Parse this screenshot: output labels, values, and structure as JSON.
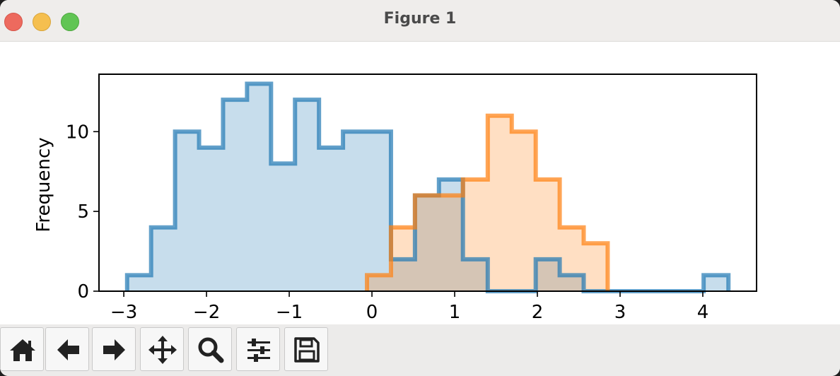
{
  "window": {
    "title": "Figure 1"
  },
  "toolbar": {
    "buttons": [
      {
        "name": "home-button",
        "icon": "home-icon"
      },
      {
        "name": "back-button",
        "icon": "arrow-left-icon"
      },
      {
        "name": "forward-button",
        "icon": "arrow-right-icon"
      },
      {
        "name": "pan-button",
        "icon": "move-icon"
      },
      {
        "name": "zoom-button",
        "icon": "magnifier-icon"
      },
      {
        "name": "configure-subplots-button",
        "icon": "sliders-icon"
      },
      {
        "name": "save-button",
        "icon": "floppy-disk-icon"
      }
    ]
  },
  "chart_data": {
    "type": "bar",
    "histtype": "stepfilled",
    "title": "",
    "xlabel": "",
    "ylabel": "Frequency",
    "xlim": [
      -3.3,
      4.65
    ],
    "ylim": [
      0,
      13.6
    ],
    "xticks": [
      -3,
      -2,
      -1,
      0,
      1,
      2,
      3,
      4
    ],
    "xtick_labels": [
      "−3",
      "−2",
      "−1",
      "0",
      "1",
      "2",
      "3",
      "4"
    ],
    "yticks": [
      0,
      5,
      10
    ],
    "ytick_labels": [
      "0",
      "5",
      "10"
    ],
    "grid": false,
    "series": [
      {
        "color": "#1f77b4",
        "fill_alpha": 0.25,
        "edges": [
          -2.96,
          -2.67,
          -2.38,
          -2.09,
          -1.8,
          -1.51,
          -1.22,
          -0.93,
          -0.64,
          -0.35,
          -0.06,
          0.23,
          0.52,
          0.81,
          1.1,
          1.4,
          1.69,
          1.98,
          2.27,
          2.56,
          2.85,
          3.14,
          3.43,
          3.72,
          4.01,
          4.31
        ],
        "values": [
          1,
          4,
          10,
          9,
          12,
          13,
          8,
          12,
          9,
          10,
          10,
          2,
          6,
          7,
          2,
          0,
          0,
          2,
          1,
          0,
          0,
          0,
          0,
          0,
          1
        ]
      },
      {
        "color": "#ff7f0e",
        "fill_alpha": 0.25,
        "edges": [
          -0.06,
          0.23,
          0.52,
          0.81,
          1.1,
          1.4,
          1.69,
          1.98,
          2.27,
          2.56,
          2.85
        ],
        "values": [
          1,
          4,
          6,
          6,
          7,
          11,
          10,
          7,
          4,
          3
        ]
      }
    ]
  }
}
